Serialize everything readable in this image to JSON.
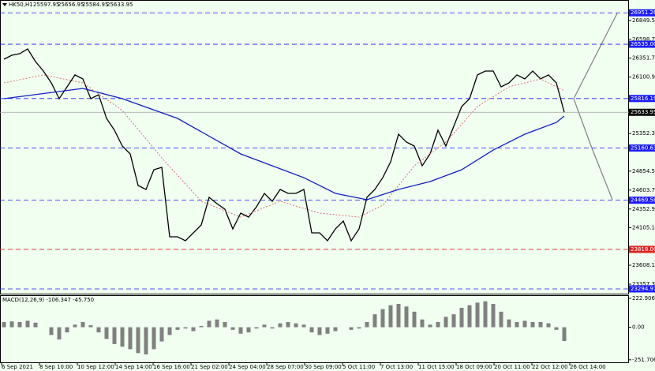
{
  "chart_data": [
    {
      "type": "line",
      "symbol": "HK50,H1",
      "ohlc": [
        25597.95,
        25656.95,
        25584.95,
        25633.95
      ],
      "xlim": [
        -0.5,
        79.2
      ],
      "ylim": [
        23232,
        27121
      ],
      "xticks": [
        {
          "value": -0.3,
          "label": "6 Sep 2021"
        },
        {
          "value": 4.5,
          "label": "8 Sep 10:00"
        },
        {
          "value": 9.3,
          "label": "10 Sep 12:00"
        },
        {
          "value": 14.1,
          "label": "14 Sep 14:00"
        },
        {
          "value": 18.9,
          "label": "16 Sep 16:00"
        },
        {
          "value": 23.7,
          "label": "21 Sep 02:00"
        },
        {
          "value": 28.5,
          "label": "24 Sep 04:00"
        },
        {
          "value": 33.3,
          "label": "28 Sep 07:00"
        },
        {
          "value": 38.1,
          "label": "30 Sep 09:00"
        },
        {
          "value": 42.9,
          "label": "5 Oct 11:00"
        },
        {
          "value": 47.7,
          "label": "7 Oct 13:00"
        },
        {
          "value": 52.5,
          "label": "11 Oct 15:00"
        },
        {
          "value": 57.3,
          "label": "18 Oct 09:00"
        },
        {
          "value": 62.1,
          "label": "20 Oct 11:00"
        },
        {
          "value": 66.9,
          "label": "22 Oct 12:00"
        },
        {
          "value": 71.7,
          "label": "26 Oct 14:00"
        }
      ],
      "yticks": [
        {
          "value": 26849.5,
          "label": "26849.50"
        },
        {
          "value": 26598.7,
          "label": "26598.70"
        },
        {
          "value": 26351.7,
          "label": "26351.70"
        },
        {
          "value": 26100.9,
          "label": "26100.90"
        },
        {
          "value": 25352.3,
          "label": "25352.30"
        },
        {
          "value": 24854.5,
          "label": "24854.50"
        },
        {
          "value": 24603.7,
          "label": "24603.70"
        },
        {
          "value": 24352.9,
          "label": "24352.90"
        },
        {
          "value": 24105.1,
          "label": "24105.10"
        },
        {
          "value": 23608.1,
          "label": "23608.10"
        },
        {
          "value": 23357.3,
          "label": "23357.30"
        }
      ],
      "levels": [
        {
          "value": 26951.26,
          "color": "#1a1aff"
        },
        {
          "value": 26535,
          "label": "26535.00",
          "color": "#1a1aff"
        },
        {
          "value": 25816.19,
          "color": "#1a1aff"
        },
        {
          "value": 25633.95,
          "color": "#000000"
        },
        {
          "value": 25160.63,
          "color": "#1a1aff"
        },
        {
          "value": 24469.58,
          "color": "#1a1aff"
        },
        {
          "value": 23818,
          "label": "23818.00",
          "color": "#e02020"
        },
        {
          "value": 23294.97,
          "color": "#1a1aff"
        }
      ],
      "series": [
        {
          "color": "#000000",
          "values": [
            26337,
            26389,
            26410,
            26473,
            26306,
            26180,
            26023,
            25814,
            25971,
            26129,
            26076,
            25814,
            25866,
            25553,
            25396,
            25187,
            25082,
            24664,
            24612,
            24873,
            24905,
            23985,
            23985,
            23932,
            24037,
            24141,
            24507,
            24424,
            24350,
            24089,
            24298,
            24246,
            24382,
            24560,
            24455,
            24612,
            24560,
            24560,
            24612,
            24037,
            24037,
            23932,
            24089,
            24194,
            23932,
            24089,
            24507,
            24612,
            24768,
            24978,
            25344,
            25239,
            25187,
            24926,
            25082,
            25396,
            25187,
            25448,
            25710,
            25814,
            26129,
            26180,
            26180,
            25971,
            26023,
            26129,
            26076,
            26180,
            26076,
            26129,
            26023,
            25634
          ]
        },
        {
          "color": "#1020c0",
          "x": [
            0,
            10,
            15,
            22,
            30,
            38,
            42,
            46,
            50,
            54,
            58,
            62,
            66,
            70,
            71
          ],
          "values": [
            25814,
            25950,
            25814,
            25553,
            25082,
            24768,
            24560,
            24476,
            24612,
            24717,
            24873,
            25134,
            25344,
            25500,
            25584
          ]
        },
        {
          "color": "#e05050",
          "dash": true,
          "x": [
            0,
            5,
            10,
            15,
            20,
            25,
            30,
            35,
            40,
            45,
            48,
            52,
            56,
            60,
            64,
            68,
            71
          ],
          "values": [
            26023,
            26129,
            26023,
            25657,
            25030,
            24455,
            24246,
            24455,
            24298,
            24246,
            24403,
            24926,
            25239,
            25710,
            25971,
            26076,
            25919
          ]
        }
      ]
    },
    {
      "type": "bar",
      "title": "MACD(12,26,9) -106.347 -45.750",
      "color": "#808080",
      "ylim": [
        -265,
        235
      ],
      "yticks": [
        222.906,
        {
          "value": 0,
          "label": "0.00"
        },
        -251.706
      ],
      "values": [
        40,
        45,
        40,
        50,
        35,
        0,
        -60,
        -95,
        -40,
        20,
        40,
        15,
        -40,
        -90,
        -130,
        -150,
        -170,
        -200,
        -210,
        -170,
        -110,
        -60,
        -20,
        -10,
        -30,
        10,
        50,
        60,
        40,
        -20,
        -50,
        -40,
        -10,
        20,
        -10,
        30,
        40,
        30,
        20,
        -40,
        -60,
        -50,
        -30,
        0,
        -20,
        -10,
        40,
        100,
        140,
        170,
        180,
        160,
        120,
        60,
        20,
        40,
        80,
        100,
        150,
        170,
        190,
        200,
        180,
        120,
        60,
        40,
        50,
        40,
        40,
        30,
        -20,
        -106.347
      ]
    }
  ]
}
